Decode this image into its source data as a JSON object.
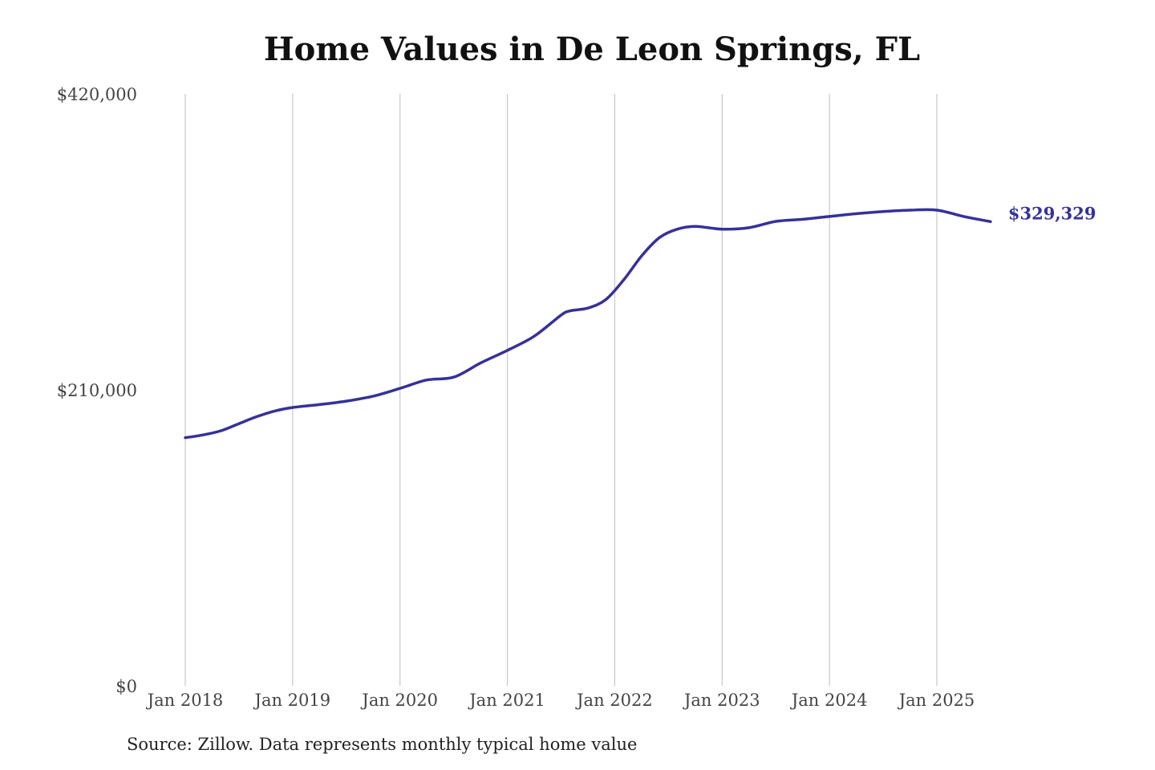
{
  "chart_data": {
    "type": "line",
    "title": "Home Values in De Leon Springs, FL",
    "source": "Source: Zillow. Data represents monthly typical home value",
    "xlabel": "",
    "ylabel": "",
    "x_start": "2018-01",
    "x_end": "2025-07",
    "ylim": [
      0,
      420000
    ],
    "y_ticks": [
      {
        "value": 0,
        "label": "$0"
      },
      {
        "value": 210000,
        "label": "$210,000"
      },
      {
        "value": 420000,
        "label": "$420,000"
      }
    ],
    "x_ticks": [
      {
        "date": "2018-01",
        "label": "Jan 2018"
      },
      {
        "date": "2019-01",
        "label": "Jan 2019"
      },
      {
        "date": "2020-01",
        "label": "Jan 2020"
      },
      {
        "date": "2021-01",
        "label": "Jan 2021"
      },
      {
        "date": "2022-01",
        "label": "Jan 2022"
      },
      {
        "date": "2023-01",
        "label": "Jan 2023"
      },
      {
        "date": "2024-01",
        "label": "Jan 2024"
      },
      {
        "date": "2025-01",
        "label": "Jan 2025"
      }
    ],
    "grid": {
      "vertical": true,
      "horizontal": false
    },
    "series": [
      {
        "color": "#35319a",
        "end_label": "$329,329",
        "points": [
          {
            "x": "2018-01",
            "y": 176000
          },
          {
            "x": "2018-03",
            "y": 178000
          },
          {
            "x": "2018-05",
            "y": 181000
          },
          {
            "x": "2018-07",
            "y": 186000
          },
          {
            "x": "2018-09",
            "y": 191000
          },
          {
            "x": "2018-11",
            "y": 195000
          },
          {
            "x": "2019-01",
            "y": 197500
          },
          {
            "x": "2019-04",
            "y": 199500
          },
          {
            "x": "2019-07",
            "y": 202000
          },
          {
            "x": "2019-10",
            "y": 205500
          },
          {
            "x": "2020-01",
            "y": 211000
          },
          {
            "x": "2020-04",
            "y": 217000
          },
          {
            "x": "2020-07",
            "y": 219000
          },
          {
            "x": "2020-10",
            "y": 229000
          },
          {
            "x": "2021-01",
            "y": 238000
          },
          {
            "x": "2021-04",
            "y": 248000
          },
          {
            "x": "2021-07",
            "y": 263000
          },
          {
            "x": "2021-08",
            "y": 266000
          },
          {
            "x": "2021-10",
            "y": 268000
          },
          {
            "x": "2021-12",
            "y": 274000
          },
          {
            "x": "2022-02",
            "y": 288000
          },
          {
            "x": "2022-04",
            "y": 305000
          },
          {
            "x": "2022-06",
            "y": 318000
          },
          {
            "x": "2022-08",
            "y": 324000
          },
          {
            "x": "2022-10",
            "y": 326000
          },
          {
            "x": "2023-01",
            "y": 324000
          },
          {
            "x": "2023-04",
            "y": 325000
          },
          {
            "x": "2023-07",
            "y": 329500
          },
          {
            "x": "2023-10",
            "y": 331000
          },
          {
            "x": "2024-01",
            "y": 333000
          },
          {
            "x": "2024-04",
            "y": 335000
          },
          {
            "x": "2024-07",
            "y": 336500
          },
          {
            "x": "2024-10",
            "y": 337500
          },
          {
            "x": "2025-01",
            "y": 337500
          },
          {
            "x": "2025-04",
            "y": 333000
          },
          {
            "x": "2025-07",
            "y": 329329
          }
        ]
      }
    ]
  }
}
